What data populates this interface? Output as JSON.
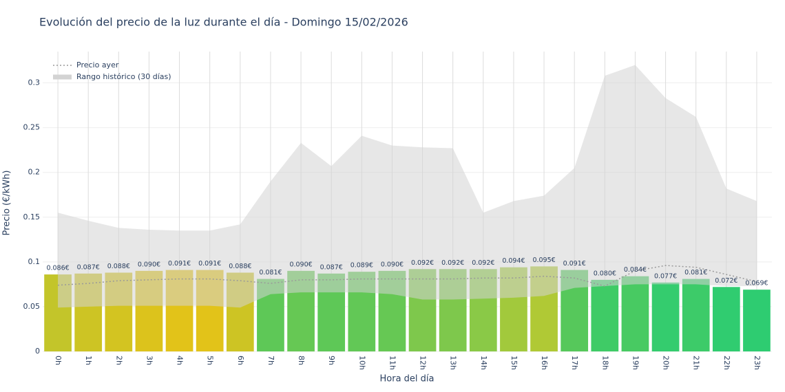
{
  "chart_data": {
    "type": "bar",
    "title": "Evolución del precio de la luz durante el día - Domingo 15/02/2026",
    "x_label": "Hora del día",
    "y_label": "Precio (€/kWh)",
    "categories": [
      "0h",
      "1h",
      "2h",
      "3h",
      "4h",
      "5h",
      "6h",
      "7h",
      "8h",
      "9h",
      "10h",
      "11h",
      "12h",
      "13h",
      "14h",
      "15h",
      "16h",
      "17h",
      "18h",
      "19h",
      "20h",
      "21h",
      "22h",
      "23h"
    ],
    "values": [
      0.086,
      0.087,
      0.088,
      0.09,
      0.091,
      0.091,
      0.088,
      0.081,
      0.09,
      0.087,
      0.089,
      0.09,
      0.092,
      0.092,
      0.092,
      0.094,
      0.095,
      0.091,
      0.08,
      0.084,
      0.077,
      0.081,
      0.072,
      0.069
    ],
    "value_labels": [
      "0.086€",
      "0.087€",
      "0.088€",
      "0.090€",
      "0.091€",
      "0.091€",
      "0.088€",
      "0.081€",
      "0.090€",
      "0.087€",
      "0.089€",
      "0.090€",
      "0.092€",
      "0.092€",
      "0.092€",
      "0.094€",
      "0.095€",
      "0.091€",
      "0.080€",
      "0.084€",
      "0.077€",
      "0.081€",
      "0.072€",
      "0.069€"
    ],
    "colors": [
      "#c3c52a",
      "#cdc424",
      "#d3c421",
      "#dcc31c",
      "#e2c319",
      "#e2c319",
      "#cdc424",
      "#5ec857",
      "#66c854",
      "#5ec857",
      "#62c856",
      "#66c854",
      "#7ec84c",
      "#7ec84c",
      "#8ac947",
      "#a2c93c",
      "#b0c935",
      "#56c85b",
      "#3fcb66",
      "#48ca62",
      "#34cc6e",
      "#3dcb69",
      "#30cc70",
      "#2ecc71"
    ],
    "lines": [
      {
        "name": "Precio ayer",
        "color": "#999999",
        "values": [
          0.074,
          0.076,
          0.079,
          0.08,
          0.081,
          0.081,
          0.079,
          0.076,
          0.08,
          0.08,
          0.081,
          0.081,
          0.081,
          0.081,
          0.082,
          0.082,
          0.084,
          0.082,
          0.073,
          0.09,
          0.096,
          0.094,
          0.086,
          0.078
        ]
      }
    ],
    "band": {
      "name": "Rango histórico (30 días)",
      "color": "#d3d3d3",
      "upper": [
        0.155,
        0.146,
        0.138,
        0.136,
        0.135,
        0.135,
        0.142,
        0.19,
        0.233,
        0.207,
        0.241,
        0.23,
        0.228,
        0.227,
        0.155,
        0.168,
        0.174,
        0.205,
        0.308,
        0.32,
        0.283,
        0.262,
        0.182,
        0.168
      ],
      "lower": [
        0.049,
        0.05,
        0.051,
        0.051,
        0.051,
        0.051,
        0.049,
        0.064,
        0.066,
        0.066,
        0.066,
        0.064,
        0.058,
        0.058,
        0.059,
        0.06,
        0.062,
        0.071,
        0.073,
        0.075,
        0.075,
        0.075,
        0.073,
        0.073
      ]
    },
    "ylim": [
      0,
      0.335
    ],
    "yticks": [
      0,
      0.05,
      0.1,
      0.15,
      0.2,
      0.25,
      0.3
    ],
    "grid": true,
    "legend": "top-left"
  }
}
